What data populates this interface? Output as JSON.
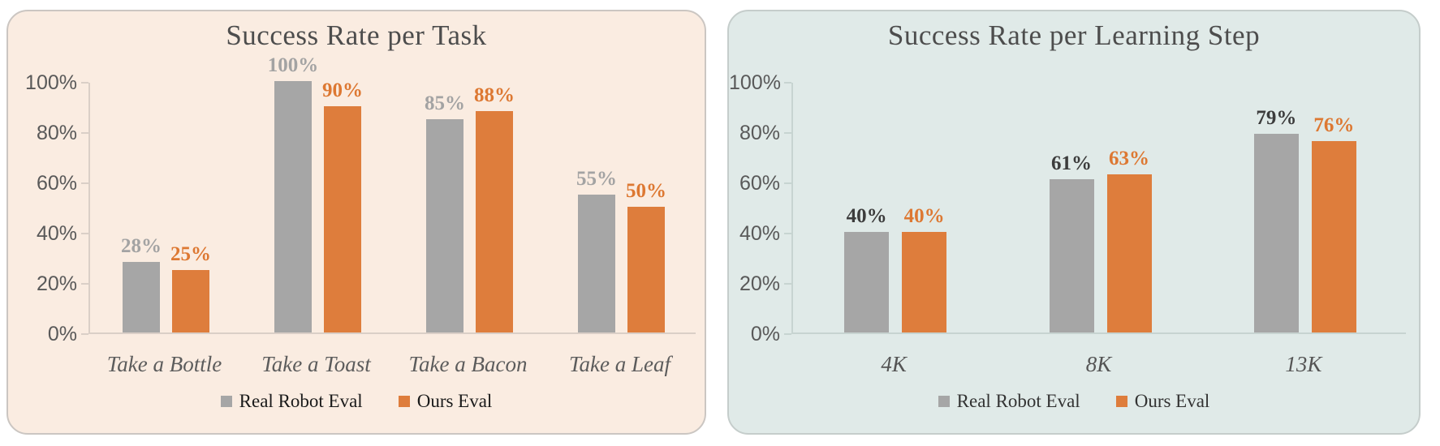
{
  "page": {
    "background": "#ffffff"
  },
  "chart_data": [
    {
      "type": "bar",
      "title": "Success Rate per Task",
      "categories": [
        "Take a Bottle",
        "Take a Toast",
        "Take a Bacon",
        "Take a Leaf"
      ],
      "series": [
        {
          "name": "Real Robot Eval",
          "color": "#A6A6A6",
          "label_color": "#A3A3A3",
          "values": [
            28,
            100,
            85,
            55
          ]
        },
        {
          "name": "Ours Eval",
          "color": "#DE7D3C",
          "label_color": "#DD7832",
          "values": [
            25,
            90,
            88,
            50
          ]
        }
      ],
      "data_labels": [
        [
          "28%",
          "100%",
          "85%",
          "55%"
        ],
        [
          "25%",
          "90%",
          "88%",
          "50%"
        ]
      ],
      "y_ticks": [
        "100%",
        "80%",
        "60%",
        "40%",
        "20%",
        "0%"
      ],
      "ylim": [
        0,
        100
      ],
      "xlabel": "",
      "ylabel": "",
      "grid": false,
      "legend": [
        "Real Robot Eval",
        "Ours Eval"
      ],
      "legend_position": "bottom",
      "panel_background": "#FAECE1",
      "panel_border": "#CBC6C2",
      "axis_color": "#DACFC7",
      "tick_label_color": "#595959",
      "title_color": "#4D4D4D",
      "category_label_color": "#5C5C5C",
      "legend_text_color": "#1A1A1A"
    },
    {
      "type": "bar",
      "title": "Success Rate per Learning Step",
      "categories": [
        "4K",
        "8K",
        "13K"
      ],
      "series": [
        {
          "name": "Real Robot Eval",
          "color": "#A6A6A6",
          "label_color": "#3C3C3C",
          "values": [
            40,
            61,
            79
          ]
        },
        {
          "name": "Ours Eval",
          "color": "#DE7D3C",
          "label_color": "#DD7832",
          "values": [
            40,
            63,
            76
          ]
        }
      ],
      "data_labels": [
        [
          "40%",
          "61%",
          "79%"
        ],
        [
          "40%",
          "63%",
          "76%"
        ]
      ],
      "y_ticks": [
        "100%",
        "80%",
        "60%",
        "40%",
        "20%",
        "0%"
      ],
      "ylim": [
        0,
        100
      ],
      "xlabel": "",
      "ylabel": "",
      "grid": false,
      "legend": [
        "Real Robot Eval",
        "Ours Eval"
      ],
      "legend_position": "bottom",
      "panel_background": "#E0EAE8",
      "panel_border": "#C5CDCB",
      "axis_color": "#C7D4D1",
      "tick_label_color": "#595959",
      "title_color": "#4D4D4D",
      "category_label_color": "#545454",
      "legend_text_color": "#333333"
    }
  ]
}
